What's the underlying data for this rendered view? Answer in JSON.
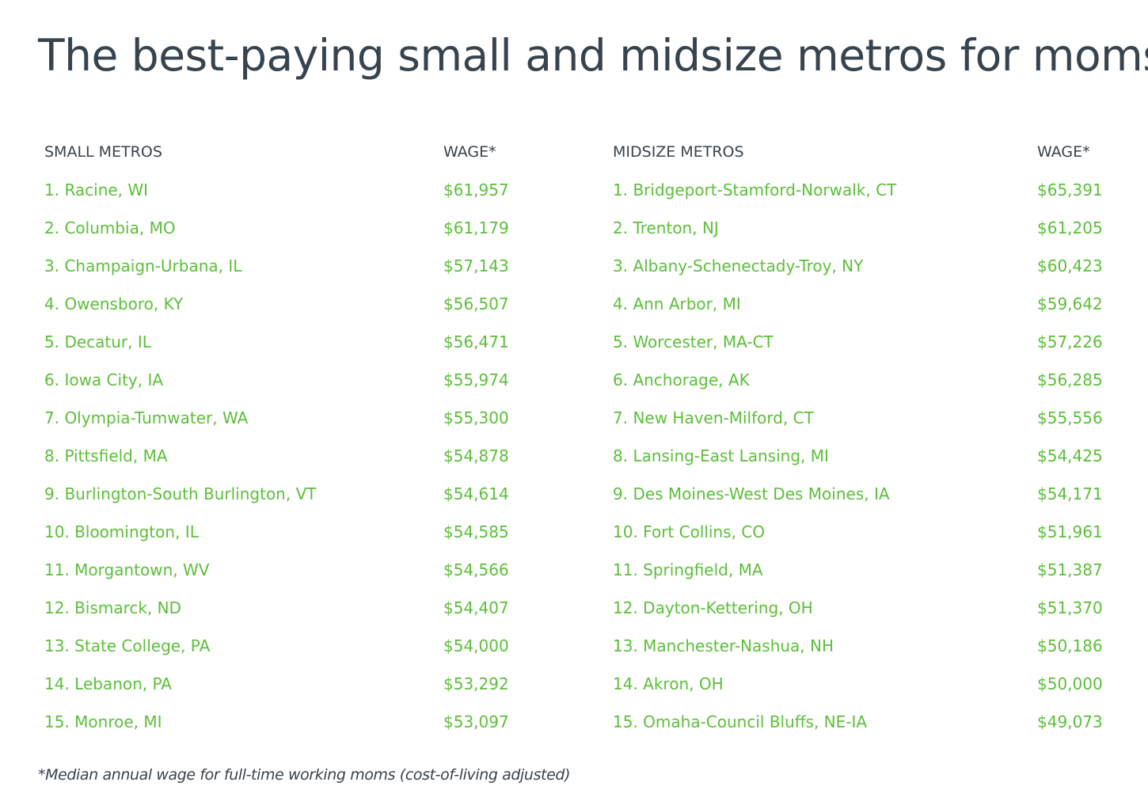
{
  "title": "The best-paying small and midsize metros for moms",
  "colors": {
    "heading_text": "#37434d",
    "row_text": "#5cbf3a",
    "background": "#ffffff"
  },
  "small": {
    "header": "SMALL METROS",
    "wage_header": "WAGE*",
    "rows": [
      {
        "name": "1. Racine, WI",
        "wage": "$61,957"
      },
      {
        "name": "2. Columbia, MO",
        "wage": "$61,179"
      },
      {
        "name": "3. Champaign-Urbana, IL",
        "wage": "$57,143"
      },
      {
        "name": "4. Owensboro, KY",
        "wage": "$56,507"
      },
      {
        "name": "5. Decatur, IL",
        "wage": "$56,471"
      },
      {
        "name": "6. Iowa City, IA",
        "wage": "$55,974"
      },
      {
        "name": "7. Olympia-Tumwater, WA",
        "wage": "$55,300"
      },
      {
        "name": "8. Pittsfield, MA",
        "wage": "$54,878"
      },
      {
        "name": "9. Burlington-South Burlington, VT",
        "wage": "$54,614"
      },
      {
        "name": "10. Bloomington, IL",
        "wage": "$54,585"
      },
      {
        "name": "11. Morgantown, WV",
        "wage": "$54,566"
      },
      {
        "name": "12. Bismarck, ND",
        "wage": "$54,407"
      },
      {
        "name": "13. State College, PA",
        "wage": "$54,000"
      },
      {
        "name": "14. Lebanon, PA",
        "wage": "$53,292"
      },
      {
        "name": "15. Monroe, MI",
        "wage": "$53,097"
      }
    ]
  },
  "midsize": {
    "header": "MIDSIZE METROS",
    "wage_header": "WAGE*",
    "rows": [
      {
        "name": "1. Bridgeport-Stamford-Norwalk, CT",
        "wage": "$65,391"
      },
      {
        "name": "2. Trenton, NJ",
        "wage": "$61,205"
      },
      {
        "name": "3. Albany-Schenectady-Troy, NY",
        "wage": "$60,423"
      },
      {
        "name": "4. Ann Arbor, MI",
        "wage": "$59,642"
      },
      {
        "name": "5. Worcester, MA-CT",
        "wage": "$57,226"
      },
      {
        "name": "6. Anchorage, AK",
        "wage": "$56,285"
      },
      {
        "name": "7. New Haven-Milford, CT",
        "wage": "$55,556"
      },
      {
        "name": "8. Lansing-East Lansing, MI",
        "wage": "$54,425"
      },
      {
        "name": "9. Des Moines-West Des Moines, IA",
        "wage": "$54,171"
      },
      {
        "name": "10. Fort Collins, CO",
        "wage": "$51,961"
      },
      {
        "name": "11. Springfield, MA",
        "wage": "$51,387"
      },
      {
        "name": "12. Dayton-Kettering, OH",
        "wage": "$51,370"
      },
      {
        "name": "13. Manchester-Nashua, NH",
        "wage": "$50,186"
      },
      {
        "name": "14. Akron, OH",
        "wage": "$50,000"
      },
      {
        "name": "15. Omaha-Council Bluffs, NE-IA",
        "wage": "$49,073"
      }
    ]
  },
  "footnote": "*Median annual wage for full-time working moms (cost-of-living adjusted)"
}
